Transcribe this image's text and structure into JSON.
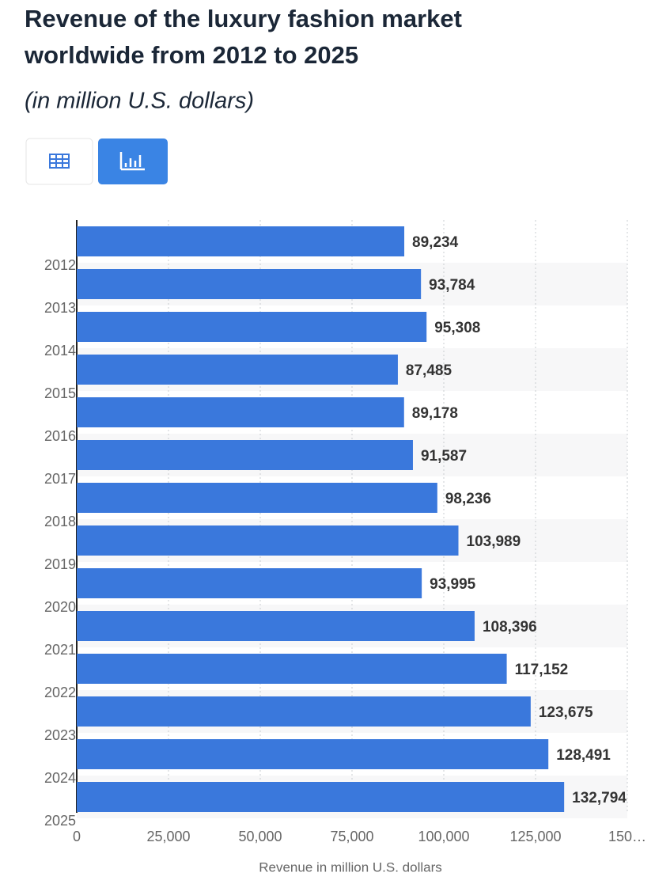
{
  "chart_data": {
    "type": "bar",
    "orientation": "horizontal",
    "title": "Revenue of the luxury fashion market worldwide from 2012 to 2025",
    "subtitle": "(in million U.S. dollars)",
    "x_label": "Revenue in million U.S. dollars",
    "categories": [
      "2012",
      "2013",
      "2014",
      "2015",
      "2016",
      "2017",
      "2018",
      "2019",
      "2020",
      "2021",
      "2022",
      "2023",
      "2024",
      "2025"
    ],
    "values": [
      89234,
      93784,
      95308,
      87485,
      89178,
      91587,
      98236,
      103989,
      93995,
      108396,
      117152,
      123675,
      128491,
      132794
    ],
    "value_labels": [
      "89,234",
      "93,784",
      "95,308",
      "87,485",
      "89,178",
      "91,587",
      "98,236",
      "103,989",
      "93,995",
      "108,396",
      "117,152",
      "123,675",
      "128,491",
      "132,794"
    ],
    "color": "#3a78dc",
    "xlim": [
      0,
      150000
    ],
    "xticks": [
      0,
      {
        "value": 25000,
        "label": "25,000"
      },
      {
        "value": 50000,
        "label": "50,000"
      },
      {
        "value": 75000,
        "label": "75,000"
      },
      {
        "value": 100000,
        "label": "100,000"
      },
      {
        "value": 125000,
        "label": "125,000"
      },
      {
        "value": 150000,
        "label": "150…"
      }
    ],
    "grid": true
  }
}
